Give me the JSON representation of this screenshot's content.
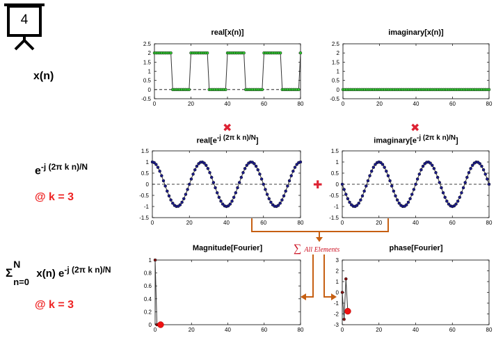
{
  "slide": {
    "number": "4"
  },
  "left_labels": {
    "xn": "x(n)",
    "exp_base": "e",
    "exp_power": "-j (2π k n)/N",
    "k1": "@ k = 3",
    "sum_sigma": "Σ",
    "sum_sup": "N",
    "sum_sub": "n=0",
    "sum_expr": " x(n) e",
    "sum_power": "-j (2π k n)/N",
    "k2": "@ k = 3"
  },
  "titles": {
    "real_x": "real[x(n)]",
    "imag_x": "imaginary[x(n)]",
    "real_e_pre": "real[e",
    "real_e_sup": "-j (2π k n)/N",
    "real_e_post": "]",
    "imag_e_pre": "imaginary[e",
    "imag_e_sup": "-j (2π k n)/N",
    "imag_e_post": "]",
    "mag": "Magnitude[Fourier]",
    "phase": "phase[Fourier]"
  },
  "symbols": {
    "multiply": "✖",
    "plus": "✚",
    "sum_sigma": "∑",
    "sum_text": "All Elements"
  },
  "colors": {
    "green_marker": "#33cc33",
    "blue_marker": "#1a1a8c",
    "red_marker": "#ee1111",
    "dark_red_marker": "#8b1010",
    "arrow": "#c65f12",
    "symbol_red": "#dd2233"
  },
  "chart_data": [
    {
      "id": "real_x",
      "type": "line",
      "x_range": [
        0,
        80
      ],
      "ylim": [
        -0.5,
        2.5
      ],
      "yticks": [
        -0.5,
        0,
        0.5,
        1,
        1.5,
        2,
        2.5
      ],
      "yticklabels": [
        "-0.5",
        "0",
        "0.5",
        "1",
        "1.5",
        "2",
        "2.5"
      ],
      "xticks": [
        0,
        20,
        40,
        60,
        80
      ],
      "xticklabels": [
        "0",
        "20",
        "40",
        "60",
        "80"
      ],
      "zero_line": true,
      "series": [
        {
          "signal": "square",
          "high": 2,
          "low": 0,
          "high_start": 0,
          "high_len": 10,
          "period": 20,
          "marker_color": "#33cc33"
        }
      ]
    },
    {
      "id": "imag_x",
      "type": "line",
      "x_range": [
        0,
        80
      ],
      "ylim": [
        -0.5,
        2.5
      ],
      "yticks": [
        -0.5,
        0,
        0.5,
        1,
        1.5,
        2,
        2.5
      ],
      "yticklabels": [
        "-0.5",
        "0",
        "0.5",
        "1",
        "1.5",
        "2",
        "2.5"
      ],
      "xticks": [
        0,
        20,
        40,
        60,
        80
      ],
      "xticklabels": [
        "0",
        "20",
        "40",
        "60",
        "80"
      ],
      "zero_line": true,
      "series": [
        {
          "signal": "constant",
          "value": 0,
          "marker_color": "#33cc33"
        }
      ]
    },
    {
      "id": "real_e",
      "type": "line",
      "x_range": [
        0,
        80
      ],
      "ylim": [
        -1.5,
        1.5
      ],
      "yticks": [
        -1.5,
        -1,
        -0.5,
        0,
        0.5,
        1,
        1.5
      ],
      "yticklabels": [
        "-1.5",
        "-1",
        "-0.5",
        "0",
        "0.5",
        "1",
        "1.5"
      ],
      "xticks": [
        0,
        20,
        40,
        60,
        80
      ],
      "xticklabels": [
        "0",
        "20",
        "40",
        "60",
        "80"
      ],
      "zero_line": true,
      "series": [
        {
          "signal": "cos",
          "k": 3,
          "N": 80,
          "marker_color": "#1a1a8c"
        }
      ]
    },
    {
      "id": "imag_e",
      "type": "line",
      "x_range": [
        0,
        80
      ],
      "ylim": [
        -1.5,
        1.5
      ],
      "yticks": [
        -1.5,
        -1,
        -0.5,
        0,
        0.5,
        1,
        1.5
      ],
      "yticklabels": [
        "-1.5",
        "-1",
        "-0.5",
        "0",
        "0.5",
        "1",
        "1.5"
      ],
      "xticks": [
        0,
        20,
        40,
        60,
        80
      ],
      "xticklabels": [
        "0",
        "20",
        "40",
        "60",
        "80"
      ],
      "zero_line": true,
      "series": [
        {
          "signal": "neg_sin",
          "k": 3,
          "N": 80,
          "marker_color": "#1a1a8c"
        }
      ]
    },
    {
      "id": "mag",
      "type": "line",
      "x_range": [
        0,
        80
      ],
      "ylim": [
        0,
        1
      ],
      "yticks": [
        0,
        0.2,
        0.4,
        0.6,
        0.8,
        1
      ],
      "yticklabels": [
        "0",
        "0.2",
        "0.4",
        "0.6",
        "0.8",
        "1"
      ],
      "xticks": [
        0,
        20,
        40,
        60,
        80
      ],
      "xticklabels": [
        "0",
        "20",
        "40",
        "60",
        "80"
      ],
      "zero_line": false,
      "series": [
        {
          "name": "magnitude",
          "x": [
            0,
            1,
            2,
            3
          ],
          "y": [
            1,
            0,
            0,
            0
          ],
          "marker_color": "#8b1010"
        }
      ],
      "highlight": {
        "x": 3,
        "y": 0,
        "color": "#ee1111"
      }
    },
    {
      "id": "phase",
      "type": "line",
      "x_range": [
        0,
        80
      ],
      "ylim": [
        -3,
        3
      ],
      "yticks": [
        -3,
        -2,
        -1,
        0,
        1,
        2,
        3
      ],
      "yticklabels": [
        "-3",
        "-2",
        "-1",
        "0",
        "1",
        "2",
        "3"
      ],
      "xticks": [
        0,
        20,
        40,
        60,
        80
      ],
      "xticklabels": [
        "0",
        "20",
        "40",
        "60",
        "80"
      ],
      "zero_line": false,
      "series": [
        {
          "name": "phase",
          "x": [
            0,
            1,
            2,
            3
          ],
          "y": [
            0,
            -2.5,
            1.25,
            -1.75
          ],
          "marker_color": "#8b1010"
        }
      ],
      "highlight": {
        "x": 3,
        "y": -1.75,
        "color": "#ee1111"
      }
    }
  ]
}
